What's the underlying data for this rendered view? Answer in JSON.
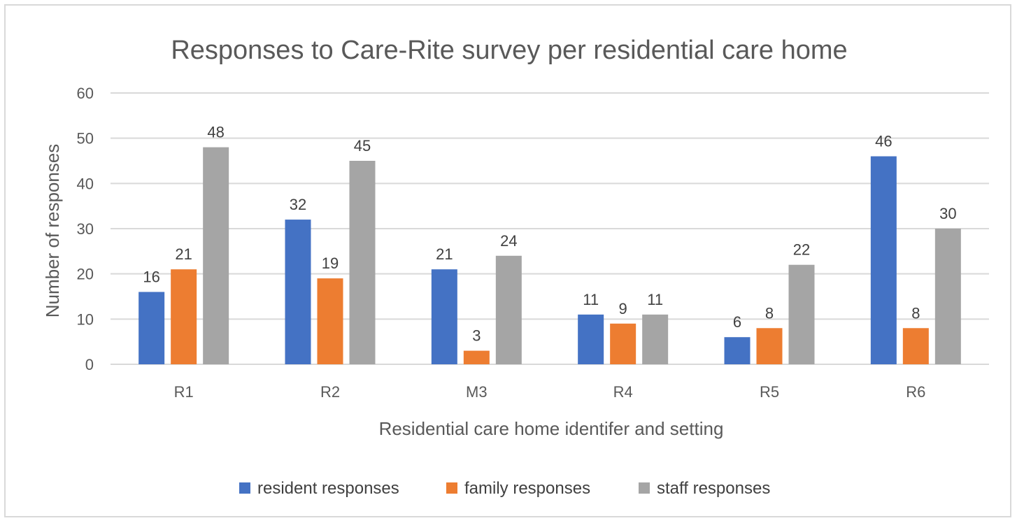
{
  "chart_data": {
    "type": "bar",
    "title": "Responses to Care-Rite survey per residential care home",
    "xlabel": "Residential care home identifer and setting",
    "ylabel": "Number of responses",
    "categories": [
      "R1",
      "R2",
      "M3",
      "R4",
      "R5",
      "R6"
    ],
    "ylim": [
      0,
      60
    ],
    "yticks": [
      0,
      10,
      20,
      30,
      40,
      50,
      60
    ],
    "grid": true,
    "legend_position": "bottom",
    "series": [
      {
        "name": "resident responses",
        "color": "#4472c4",
        "values": [
          16,
          32,
          21,
          11,
          6,
          46
        ]
      },
      {
        "name": "family responses",
        "color": "#ed7d31",
        "values": [
          21,
          19,
          3,
          9,
          8,
          8
        ]
      },
      {
        "name": "staff responses",
        "color": "#a5a5a5",
        "values": [
          48,
          45,
          24,
          11,
          22,
          30
        ]
      }
    ]
  }
}
